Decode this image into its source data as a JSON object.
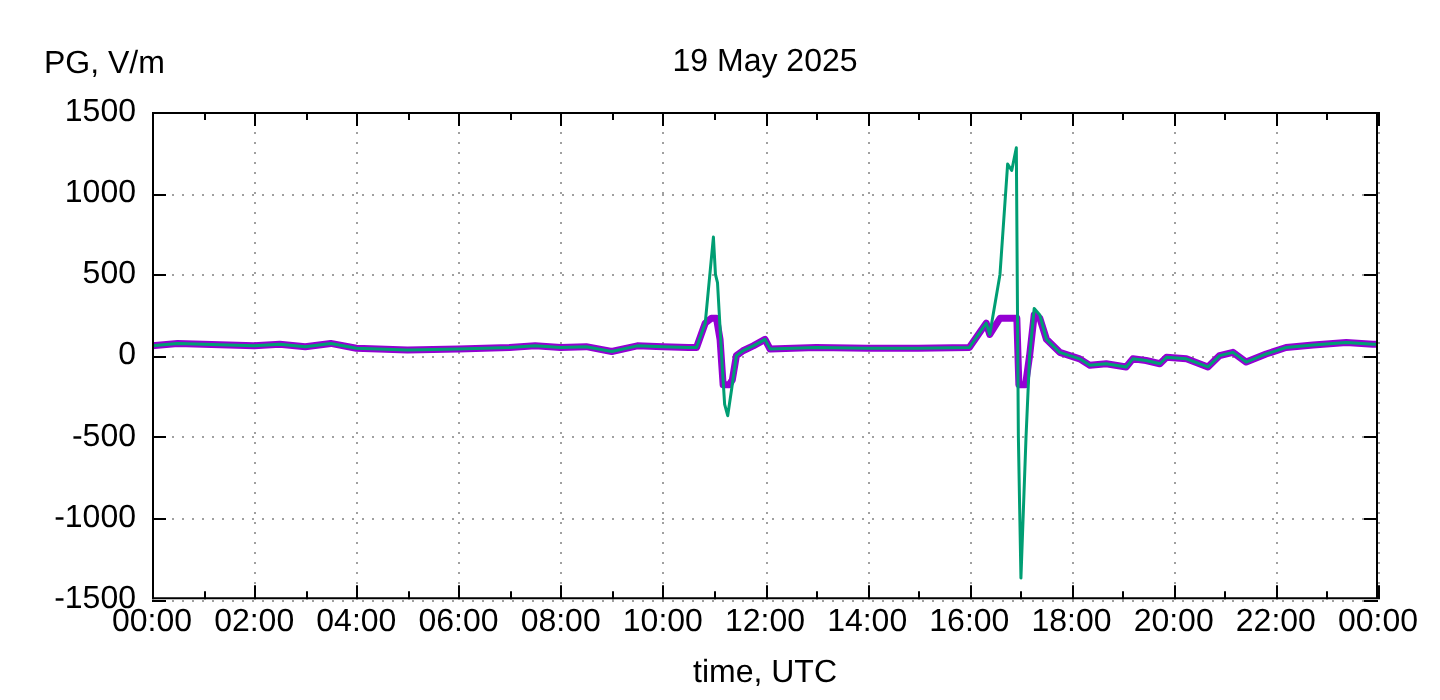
{
  "chart_data": {
    "type": "line",
    "title": "19 May 2025",
    "xlabel": "time, UTC",
    "ylabel": "PG, V/m",
    "xlim": [
      0,
      24
    ],
    "ylim": [
      -1500,
      1500
    ],
    "xticks": [
      {
        "value": 0,
        "label": "00:00"
      },
      {
        "value": 1,
        "label": null
      },
      {
        "value": 2,
        "label": "02:00"
      },
      {
        "value": 3,
        "label": null
      },
      {
        "value": 4,
        "label": "04:00"
      },
      {
        "value": 5,
        "label": null
      },
      {
        "value": 6,
        "label": "06:00"
      },
      {
        "value": 7,
        "label": null
      },
      {
        "value": 8,
        "label": "08:00"
      },
      {
        "value": 9,
        "label": null
      },
      {
        "value": 10,
        "label": "10:00"
      },
      {
        "value": 11,
        "label": null
      },
      {
        "value": 12,
        "label": "12:00"
      },
      {
        "value": 13,
        "label": null
      },
      {
        "value": 14,
        "label": "14:00"
      },
      {
        "value": 15,
        "label": null
      },
      {
        "value": 16,
        "label": "16:00"
      },
      {
        "value": 17,
        "label": null
      },
      {
        "value": 18,
        "label": "18:00"
      },
      {
        "value": 19,
        "label": null
      },
      {
        "value": 20,
        "label": "20:00"
      },
      {
        "value": 21,
        "label": null
      },
      {
        "value": 22,
        "label": "22:00"
      },
      {
        "value": 23,
        "label": null
      },
      {
        "value": 24,
        "label": "00:00"
      }
    ],
    "yticks": [
      -1500,
      -1000,
      -500,
      0,
      500,
      1000,
      1500
    ],
    "grid": true,
    "legend": false,
    "marker": "none",
    "line_style": "solid",
    "series": [
      {
        "color": "#9400d3",
        "x": [
          0,
          0.5,
          1,
          2,
          2.5,
          3,
          3.5,
          4,
          5,
          6,
          7,
          7.5,
          8,
          8.5,
          9,
          9.5,
          10,
          10.5,
          10.66,
          10.83,
          10.95,
          11.05,
          11.12,
          11.18,
          11.3,
          11.36,
          11.44,
          11.57,
          11.77,
          12,
          12.1,
          13,
          14,
          15,
          16,
          16.33,
          16.4,
          16.6,
          16.7,
          16.93,
          16.97,
          17.1,
          17.18,
          17.27,
          17.38,
          17.51,
          17.77,
          18.16,
          18.36,
          18.68,
          19.07,
          19.2,
          19.46,
          19.73,
          19.86,
          20.25,
          20.67,
          20.9,
          21.16,
          21.42,
          21.81,
          22.2,
          22.73,
          23.38,
          23.9,
          24
        ],
        "values": [
          60,
          75,
          70,
          60,
          70,
          55,
          75,
          45,
          35,
          40,
          50,
          60,
          50,
          55,
          25,
          60,
          55,
          50,
          50,
          200,
          230,
          230,
          100,
          -180,
          -180,
          -150,
          0,
          30,
          60,
          100,
          40,
          50,
          45,
          45,
          50,
          200,
          130,
          230,
          230,
          230,
          -180,
          -180,
          0,
          250,
          230,
          100,
          20,
          -20,
          -60,
          -50,
          -70,
          -20,
          -30,
          -50,
          -10,
          -20,
          -70,
          0,
          20,
          -40,
          10,
          50,
          65,
          80,
          70,
          70
        ]
      },
      {
        "color": "#009e73",
        "x": [
          0,
          0.5,
          1,
          2,
          2.5,
          3,
          3.5,
          4,
          5,
          6,
          7,
          7.5,
          8,
          8.5,
          9,
          9.5,
          10,
          10.5,
          10.66,
          10.83,
          10.99,
          11.03,
          11.07,
          11.16,
          11.21,
          11.27,
          11.35,
          11.44,
          11.57,
          11.77,
          12,
          12.1,
          13,
          14,
          15,
          16,
          16.33,
          16.4,
          16.6,
          16.75,
          16.83,
          16.92,
          16.96,
          17.01,
          17.11,
          17.18,
          17.27,
          17.38,
          17.51,
          17.77,
          18.16,
          18.36,
          18.68,
          19.07,
          19.2,
          19.46,
          19.73,
          19.86,
          20.25,
          20.67,
          20.9,
          21.16,
          21.42,
          21.81,
          22.2,
          22.73,
          23.38,
          23.9,
          24
        ],
        "values": [
          60,
          75,
          70,
          60,
          70,
          55,
          75,
          45,
          35,
          40,
          50,
          60,
          50,
          55,
          25,
          60,
          55,
          50,
          50,
          200,
          730,
          500,
          450,
          -50,
          -300,
          -370,
          -200,
          0,
          30,
          60,
          100,
          40,
          50,
          45,
          45,
          50,
          200,
          130,
          500,
          1180,
          1140,
          1280,
          -500,
          -1370,
          -500,
          0,
          290,
          250,
          100,
          20,
          -20,
          -60,
          -50,
          -70,
          -20,
          -30,
          -50,
          -10,
          -20,
          -70,
          0,
          20,
          -40,
          10,
          50,
          65,
          80,
          70,
          70
        ]
      }
    ]
  }
}
